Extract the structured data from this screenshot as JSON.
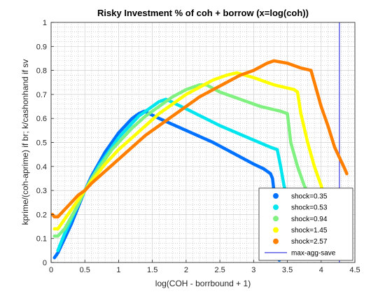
{
  "chart_data": {
    "type": "scatter",
    "title": "Risky Investment % of coh + borrow (x=log(coh))",
    "xlabel": "log(COH - borrbound + 1)",
    "ylabel": "kprime/(coh-aprime) if br; k/cashonhand if sv",
    "xlim": [
      0,
      4.5
    ],
    "ylim": [
      0,
      1
    ],
    "xticks": [
      "0",
      "0.5",
      "1",
      "1.5",
      "2",
      "2.5",
      "3",
      "3.5",
      "4",
      "4.5"
    ],
    "yticks": [
      "0",
      "0.1",
      "0.2",
      "0.3",
      "0.4",
      "0.5",
      "0.6",
      "0.7",
      "0.8",
      "0.9",
      "1"
    ],
    "grid": true,
    "minor_grid": true,
    "legend_position": "bottom-right",
    "series": [
      {
        "name": "shock=0.35",
        "color": "#0072ff",
        "points": [
          [
            0.05,
            0.02
          ],
          [
            0.1,
            0.04
          ],
          [
            0.2,
            0.1
          ],
          [
            0.3,
            0.16
          ],
          [
            0.4,
            0.23
          ],
          [
            0.5,
            0.3
          ],
          [
            0.6,
            0.36
          ],
          [
            0.7,
            0.41
          ],
          [
            0.8,
            0.46
          ],
          [
            0.9,
            0.5
          ],
          [
            1.0,
            0.54
          ],
          [
            1.1,
            0.57
          ],
          [
            1.2,
            0.6
          ],
          [
            1.3,
            0.62
          ],
          [
            1.38,
            0.63
          ],
          [
            1.6,
            0.6
          ],
          [
            2.0,
            0.55
          ],
          [
            2.4,
            0.5
          ],
          [
            2.8,
            0.44
          ],
          [
            3.0,
            0.41
          ],
          [
            3.15,
            0.39
          ],
          [
            3.2,
            0.38
          ],
          [
            3.25,
            0.37
          ],
          [
            3.28,
            0.35
          ],
          [
            3.3,
            0.3
          ],
          [
            3.32,
            0.2
          ],
          [
            3.34,
            0.1
          ],
          [
            3.36,
            0.04
          ],
          [
            3.38,
            0.01
          ]
        ]
      },
      {
        "name": "shock=0.53",
        "color": "#00e5ee",
        "points": [
          [
            0.1,
            0.05
          ],
          [
            0.2,
            0.12
          ],
          [
            0.3,
            0.18
          ],
          [
            0.4,
            0.24
          ],
          [
            0.5,
            0.3
          ],
          [
            0.6,
            0.35
          ],
          [
            0.7,
            0.4
          ],
          [
            0.8,
            0.44
          ],
          [
            0.9,
            0.48
          ],
          [
            1.0,
            0.52
          ],
          [
            1.1,
            0.55
          ],
          [
            1.2,
            0.58
          ],
          [
            1.3,
            0.61
          ],
          [
            1.4,
            0.63
          ],
          [
            1.5,
            0.65
          ],
          [
            1.6,
            0.67
          ],
          [
            1.7,
            0.68
          ],
          [
            2.0,
            0.64
          ],
          [
            2.5,
            0.57
          ],
          [
            3.0,
            0.51
          ],
          [
            3.25,
            0.48
          ],
          [
            3.35,
            0.47
          ],
          [
            3.4,
            0.4
          ],
          [
            3.45,
            0.32
          ],
          [
            3.5,
            0.27
          ],
          [
            3.55,
            0.22
          ],
          [
            3.6,
            0.15
          ],
          [
            3.65,
            0.1
          ],
          [
            3.7,
            0.06
          ]
        ]
      },
      {
        "name": "shock=0.94",
        "color": "#80f080",
        "points": [
          [
            0.05,
            0.11
          ],
          [
            0.1,
            0.11
          ],
          [
            0.2,
            0.14
          ],
          [
            0.3,
            0.19
          ],
          [
            0.4,
            0.24
          ],
          [
            0.5,
            0.3
          ],
          [
            0.6,
            0.35
          ],
          [
            0.7,
            0.39
          ],
          [
            0.8,
            0.43
          ],
          [
            0.9,
            0.47
          ],
          [
            1.0,
            0.5
          ],
          [
            1.2,
            0.56
          ],
          [
            1.4,
            0.61
          ],
          [
            1.6,
            0.65
          ],
          [
            1.8,
            0.69
          ],
          [
            2.0,
            0.72
          ],
          [
            2.1,
            0.73
          ],
          [
            2.2,
            0.74
          ],
          [
            2.3,
            0.74
          ],
          [
            2.5,
            0.71
          ],
          [
            2.8,
            0.68
          ],
          [
            3.1,
            0.65
          ],
          [
            3.4,
            0.63
          ],
          [
            3.5,
            0.62
          ],
          [
            3.55,
            0.5
          ],
          [
            3.65,
            0.4
          ],
          [
            3.75,
            0.32
          ],
          [
            3.85,
            0.27
          ],
          [
            3.95,
            0.25
          ]
        ]
      },
      {
        "name": "shock=1.45",
        "color": "#ffff00",
        "points": [
          [
            0.05,
            0.14
          ],
          [
            0.1,
            0.14
          ],
          [
            0.2,
            0.18
          ],
          [
            0.3,
            0.22
          ],
          [
            0.4,
            0.26
          ],
          [
            0.5,
            0.3
          ],
          [
            0.6,
            0.34
          ],
          [
            0.8,
            0.41
          ],
          [
            1.0,
            0.47
          ],
          [
            1.2,
            0.52
          ],
          [
            1.4,
            0.57
          ],
          [
            1.6,
            0.62
          ],
          [
            1.8,
            0.66
          ],
          [
            2.0,
            0.7
          ],
          [
            2.2,
            0.73
          ],
          [
            2.4,
            0.76
          ],
          [
            2.6,
            0.78
          ],
          [
            2.75,
            0.79
          ],
          [
            3.0,
            0.77
          ],
          [
            3.3,
            0.74
          ],
          [
            3.6,
            0.72
          ],
          [
            3.65,
            0.71
          ],
          [
            3.7,
            0.62
          ],
          [
            3.8,
            0.5
          ],
          [
            3.9,
            0.4
          ],
          [
            4.0,
            0.32
          ],
          [
            4.05,
            0.27
          ]
        ]
      },
      {
        "name": "shock=2.57",
        "color": "#ff7f00",
        "points": [
          [
            0.02,
            0.2
          ],
          [
            0.05,
            0.19
          ],
          [
            0.1,
            0.19
          ],
          [
            0.2,
            0.22
          ],
          [
            0.3,
            0.25
          ],
          [
            0.4,
            0.28
          ],
          [
            0.5,
            0.3
          ],
          [
            0.6,
            0.33
          ],
          [
            0.8,
            0.38
          ],
          [
            1.0,
            0.43
          ],
          [
            1.2,
            0.48
          ],
          [
            1.4,
            0.53
          ],
          [
            1.6,
            0.57
          ],
          [
            1.8,
            0.61
          ],
          [
            2.0,
            0.65
          ],
          [
            2.2,
            0.69
          ],
          [
            2.4,
            0.72
          ],
          [
            2.6,
            0.75
          ],
          [
            2.8,
            0.78
          ],
          [
            3.0,
            0.8
          ],
          [
            3.2,
            0.83
          ],
          [
            3.3,
            0.84
          ],
          [
            3.5,
            0.83
          ],
          [
            3.7,
            0.81
          ],
          [
            3.85,
            0.8
          ],
          [
            3.9,
            0.75
          ],
          [
            4.0,
            0.65
          ],
          [
            4.1,
            0.57
          ],
          [
            4.2,
            0.48
          ],
          [
            4.3,
            0.42
          ],
          [
            4.35,
            0.39
          ],
          [
            4.38,
            0.37
          ]
        ]
      }
    ],
    "reference_line": {
      "name": "max-agg-save",
      "type": "vertical",
      "x": 4.27,
      "color": "#5f5fe6"
    }
  }
}
